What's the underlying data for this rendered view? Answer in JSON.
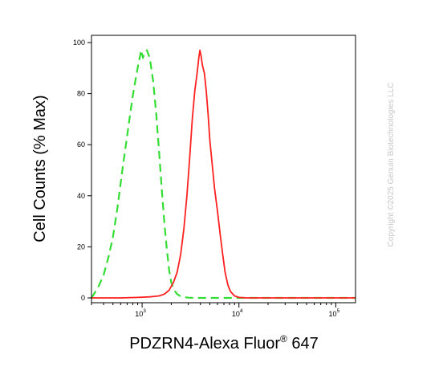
{
  "chart_data": {
    "type": "line",
    "xlabel": "PDZRN4-Alexa Fluor",
    "xlabel_sup": "®",
    "xlabel_suffix": " 647",
    "ylabel": "Cell Counts (% Max)",
    "x_scale": "log",
    "xlim": [
      300,
      160000
    ],
    "ylim": [
      0,
      100
    ],
    "y_ticks": [
      0,
      20,
      40,
      60,
      80,
      100
    ],
    "x_major_ticks": [
      {
        "value": 1000,
        "base": "10",
        "exp": "3"
      },
      {
        "value": 10000,
        "base": "10",
        "exp": "4"
      },
      {
        "value": 100000,
        "base": "10",
        "exp": "5"
      }
    ],
    "grid": false,
    "series": [
      {
        "color": "#33dd33",
        "style": "dashed",
        "x": [
          300,
          350,
          400,
          450,
          500,
          560,
          620,
          680,
          740,
          800,
          860,
          920,
          980,
          1020,
          1060,
          1120,
          1200,
          1300,
          1400,
          1500,
          1600,
          1700,
          1800,
          1900,
          2000,
          2150,
          2300,
          2500,
          2700,
          3000,
          3500,
          4000,
          6000,
          10000,
          20000,
          50000,
          160000
        ],
        "values": [
          0,
          4,
          9,
          16,
          24,
          36,
          49,
          60,
          70,
          79,
          86,
          92,
          97,
          94,
          96,
          97,
          94,
          85,
          72,
          57,
          42,
          29,
          19,
          11,
          6,
          3,
          1.5,
          0.6,
          0.3,
          0.1,
          0,
          0,
          0,
          0,
          0,
          0,
          0
        ]
      },
      {
        "color": "#ff2020",
        "style": "solid",
        "x": [
          300,
          600,
          900,
          1200,
          1500,
          1700,
          1900,
          2100,
          2300,
          2500,
          2700,
          2900,
          3100,
          3300,
          3500,
          3700,
          3850,
          3950,
          4050,
          4200,
          4400,
          4600,
          4800,
          5000,
          5300,
          5600,
          6000,
          6400,
          6800,
          7200,
          7700,
          8200,
          9000,
          10000,
          12000,
          20000,
          50000,
          160000
        ],
        "values": [
          0,
          0,
          0.2,
          0.4,
          0.8,
          1.5,
          3,
          6,
          10,
          17,
          27,
          40,
          55,
          70,
          81,
          88,
          94,
          97,
          95,
          91,
          88,
          81,
          72,
          62,
          52,
          43,
          34,
          25,
          17,
          10,
          5,
          2.5,
          0.8,
          0.2,
          0,
          0,
          0,
          0
        ]
      }
    ]
  },
  "watermark": "Copyright ©2025 Genuin Biotechnologies LLC"
}
